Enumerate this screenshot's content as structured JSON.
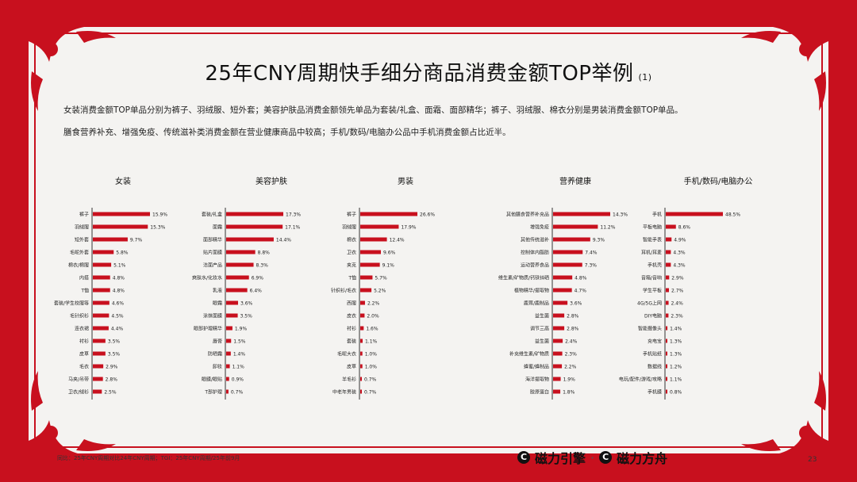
{
  "title": "25年CNY周期快手细分商品消费金额TOP举例",
  "title_note": "(1)",
  "desc": [
    "女装消费金额TOP单品分别为裤子、羽绒服、短外套；美容护肤品消费金额领先单品为套装/礼盒、面霜、面部精华；裤子、羽绒服、棉衣分别是男装消费金额TOP单品。",
    "膳食营养补充、增强免疫、传统滋补类消费金额在营业健康商品中较高；手机/数码/电脑办公品中手机消费金额占比近半。"
  ],
  "footnote": "同比：25年CNY周期对比24年CNY周期；TGI：25年CNY周期/25年前9月",
  "brand": {
    "left": "磁力引擎",
    "sep": "·",
    "right": "磁力方舟"
  },
  "page_number": "23",
  "colors": {
    "bar": "#c8101e",
    "frame": "#c8101e"
  },
  "chart_data": [
    {
      "type": "bar",
      "title": "女装",
      "categories": [
        "裤子",
        "羽绒服",
        "短外套",
        "毛呢外套",
        "棉衣/棉服",
        "内搭",
        "T恤",
        "套装/学生校服等",
        "毛针织衫",
        "连衣裙",
        "衬衫",
        "皮草",
        "毛衣",
        "马夹/吊带",
        "卫衣/绒衫"
      ],
      "values": [
        15.9,
        15.3,
        9.7,
        5.8,
        5.1,
        4.8,
        4.8,
        4.6,
        4.5,
        4.4,
        3.5,
        3.5,
        2.9,
        2.8,
        2.5
      ],
      "labels": [
        "15.9%",
        "15.3%",
        "9.7%",
        "5.8%",
        "5.1%",
        "4.8%",
        "4.8%",
        "4.6%",
        "4.5%",
        "4.4%",
        "3.5%",
        "3.5%",
        "2.9%",
        "2.8%",
        "2.5%"
      ]
    },
    {
      "type": "bar",
      "title": "美容护肤",
      "categories": [
        "套装/礼盒",
        "面霜",
        "面部精华",
        "贴片面膜",
        "洁面产品",
        "爽肤水/化妆水",
        "乳液",
        "眼霜",
        "涂抹面膜",
        "眼部护理精华",
        "唇膏",
        "防晒霜",
        "卸妆",
        "眼膜/眼贴",
        "T部护理"
      ],
      "values": [
        17.3,
        17.1,
        14.4,
        8.8,
        8.3,
        6.9,
        6.4,
        3.6,
        3.5,
        1.9,
        1.5,
        1.4,
        1.1,
        0.9,
        0.7
      ],
      "labels": [
        "17.3%",
        "17.1%",
        "14.4%",
        "8.8%",
        "8.3%",
        "6.9%",
        "6.4%",
        "3.6%",
        "3.5%",
        "1.9%",
        "1.5%",
        "1.4%",
        "1.1%",
        "0.9%",
        "0.7%"
      ]
    },
    {
      "type": "bar",
      "title": "男装",
      "categories": [
        "裤子",
        "羽绒服",
        "棉衣",
        "卫衣",
        "夹克",
        "T恤",
        "针织衫/毛衣",
        "西服",
        "皮衣",
        "衬衫",
        "套装",
        "毛呢大衣",
        "皮草",
        "羊毛衫",
        "中老年男装"
      ],
      "values": [
        26.6,
        17.9,
        12.4,
        9.6,
        9.1,
        5.7,
        5.2,
        2.2,
        2.0,
        1.6,
        1.1,
        1.0,
        1.0,
        0.7,
        0.7
      ],
      "labels": [
        "26.6%",
        "17.9%",
        "12.4%",
        "9.6%",
        "9.1%",
        "5.7%",
        "5.2%",
        "2.2%",
        "2.0%",
        "1.6%",
        "1.1%",
        "1.0%",
        "1.0%",
        "0.7%",
        "0.7%"
      ]
    },
    {
      "type": "bar",
      "title": "营养健康",
      "categories": [
        "其他膳食营养补充品",
        "增强免疫",
        "其他传统滋补",
        "控制体内脂肪",
        "运动营养食品",
        "维生素/矿物质/钙铁锌硒",
        "植物精华/提取物",
        "鹿茸/鹿制品",
        "益生菌",
        "调节三高",
        "益生菌",
        "补充维生素/矿物质",
        "蜂蜜/蜂制品",
        "海洋提取物",
        "胶原蛋白"
      ],
      "values": [
        14.3,
        11.2,
        9.3,
        7.4,
        7.3,
        4.8,
        4.7,
        3.6,
        2.8,
        2.8,
        2.4,
        2.3,
        2.2,
        1.9,
        1.8
      ],
      "labels": [
        "14.3%",
        "11.2%",
        "9.3%",
        "7.4%",
        "7.3%",
        "4.8%",
        "4.7%",
        "3.6%",
        "2.8%",
        "2.8%",
        "2.4%",
        "2.3%",
        "2.2%",
        "1.9%",
        "1.8%"
      ]
    },
    {
      "type": "bar",
      "title": "手机/数码/电脑办公",
      "categories": [
        "手机",
        "平板电脑",
        "智能手表",
        "耳机/耳麦",
        "手机壳",
        "音箱/音响",
        "学生平板",
        "4G/5G上网",
        "DIY电脑",
        "智能摄像头",
        "充电宝",
        "手机贴纸",
        "数据线",
        "电玩/配件/游戏/攻略",
        "手机膜"
      ],
      "values": [
        48.5,
        8.6,
        4.9,
        4.3,
        4.3,
        2.9,
        2.7,
        2.4,
        2.3,
        1.4,
        1.3,
        1.3,
        1.2,
        1.1,
        0.8
      ],
      "labels": [
        "48.5%",
        "8.6%",
        "4.9%",
        "4.3%",
        "4.3%",
        "2.9%",
        "2.7%",
        "2.4%",
        "2.3%",
        "1.4%",
        "1.3%",
        "1.3%",
        "1.2%",
        "1.1%",
        "0.8%"
      ]
    }
  ]
}
